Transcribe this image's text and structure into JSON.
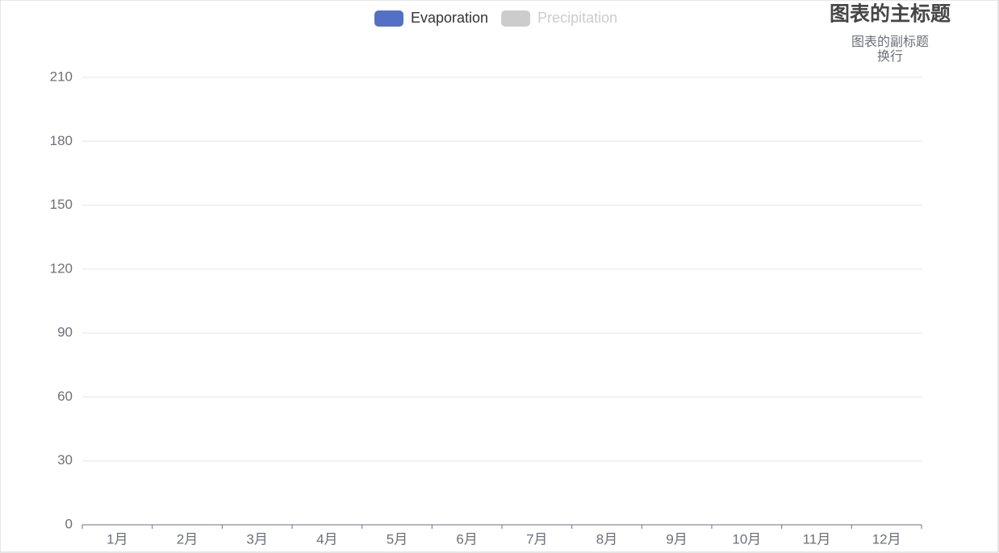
{
  "chart_data": {
    "type": "bar",
    "title": "图表的主标题",
    "subtitle": [
      "图表的副标题",
      "换行"
    ],
    "categories": [
      "1月",
      "2月",
      "3月",
      "4月",
      "5月",
      "6月",
      "7月",
      "8月",
      "9月",
      "10月",
      "11月",
      "12月"
    ],
    "series": [
      {
        "name": "Evaporation",
        "color": "#5470c6",
        "visible": true,
        "values": [
          null,
          null,
          null,
          null,
          null,
          null,
          null,
          null,
          null,
          null,
          null,
          null
        ]
      },
      {
        "name": "Precipitation",
        "color": "#cccccc",
        "visible": false,
        "values": [
          null,
          null,
          null,
          null,
          null,
          null,
          null,
          null,
          null,
          null,
          null,
          null
        ]
      }
    ],
    "ylim": [
      0,
      210
    ],
    "yticks": [
      0,
      30,
      60,
      90,
      120,
      150,
      180,
      210
    ],
    "grid": true,
    "legend": "top"
  }
}
